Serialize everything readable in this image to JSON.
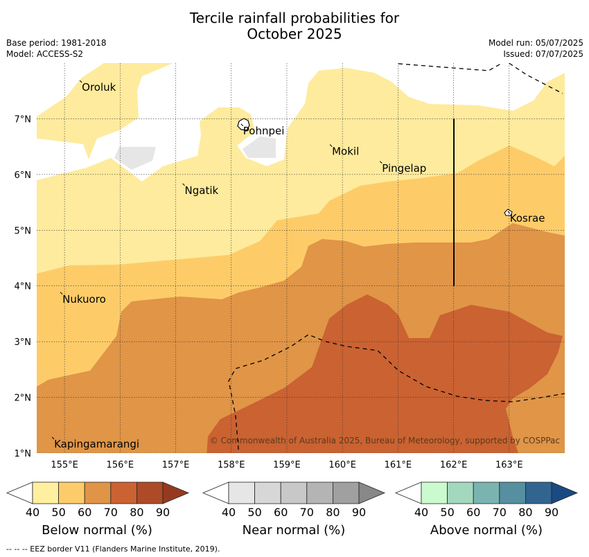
{
  "title_line1": "Tercile rainfall probabilities for",
  "title_line2": "October 2025",
  "base_period": "Base period: 1981-2018",
  "model": "Model: ACCESS-S2",
  "model_run": "Model run: 05/07/2025",
  "issued": "Issued: 07/07/2025",
  "copyright": "© Commonwealth of Australia 2025, Bureau of Meteorology, supported by COSPPac",
  "footer": "--  --  -- EEZ border V11 (Flanders Marine Institute, 2019).",
  "map": {
    "lon_range": [
      154.5,
      164.0
    ],
    "lat_range": [
      1.0,
      8.0
    ],
    "lon_ticks": [
      155,
      156,
      157,
      158,
      159,
      160,
      161,
      162,
      163
    ],
    "lon_tick_labels": [
      "155°E",
      "156°E",
      "157°E",
      "158°E",
      "159°E",
      "160°E",
      "161°E",
      "162°E",
      "163°E"
    ],
    "lat_ticks": [
      1,
      2,
      3,
      4,
      5,
      6,
      7
    ],
    "lat_tick_labels": [
      "1°N",
      "2°N",
      "3°N",
      "4°N",
      "5°N",
      "6°N",
      "7°N"
    ],
    "places": [
      {
        "name": "Oroluk",
        "lon": 155.3,
        "lat": 7.65
      },
      {
        "name": "Pohnpei",
        "lon": 158.2,
        "lat": 6.87
      },
      {
        "name": "Mokil",
        "lon": 159.8,
        "lat": 6.5
      },
      {
        "name": "Pingelap",
        "lon": 160.7,
        "lat": 6.2
      },
      {
        "name": "Ngatik",
        "lon": 157.15,
        "lat": 5.8
      },
      {
        "name": "Kosrae",
        "lon": 163.0,
        "lat": 5.3
      },
      {
        "name": "Nukuoro",
        "lon": 154.95,
        "lat": 3.85
      },
      {
        "name": "Kapingamarangi",
        "lon": 154.8,
        "lat": 1.25
      }
    ]
  },
  "colorbars": [
    {
      "label": "Below normal (%)",
      "ticks": [
        "40",
        "50",
        "60",
        "70",
        "80",
        "90"
      ],
      "colors": [
        "#fff0a0",
        "#fdcc6a",
        "#e09546",
        "#cb6232",
        "#ae4a28",
        "#963a1f"
      ]
    },
    {
      "label": "Near normal (%)",
      "ticks": [
        "40",
        "50",
        "60",
        "70",
        "80",
        "90"
      ],
      "colors": [
        "#e6e6e6",
        "#d7d7d7",
        "#c8c8c8",
        "#b4b4b4",
        "#a0a0a0",
        "#888888"
      ]
    },
    {
      "label": "Above normal (%)",
      "ticks": [
        "40",
        "50",
        "60",
        "70",
        "80",
        "90"
      ],
      "colors": [
        "#c9fbcf",
        "#a3d8bf",
        "#7ab4b0",
        "#568f9f",
        "#31658f",
        "#1a4a82"
      ]
    }
  ]
}
